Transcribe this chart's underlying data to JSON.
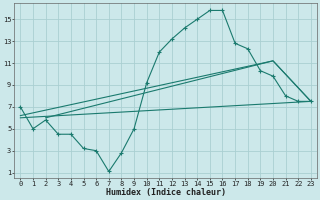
{
  "xlabel": "Humidex (Indice chaleur)",
  "bg_color": "#cce8ea",
  "grid_color": "#aacfd2",
  "line_color": "#1a7a6e",
  "xlim": [
    -0.5,
    23.5
  ],
  "ylim": [
    0.5,
    16.5
  ],
  "xticks": [
    0,
    1,
    2,
    3,
    4,
    5,
    6,
    7,
    8,
    9,
    10,
    11,
    12,
    13,
    14,
    15,
    16,
    17,
    18,
    19,
    20,
    21,
    22,
    23
  ],
  "yticks": [
    1,
    3,
    5,
    7,
    9,
    11,
    13,
    15
  ],
  "curve_x": [
    0,
    1,
    2,
    3,
    4,
    5,
    6,
    7,
    8,
    9,
    10,
    11,
    12,
    13,
    14,
    15,
    16,
    17,
    18,
    19,
    20,
    21,
    22,
    23
  ],
  "curve_y": [
    7.0,
    5.0,
    5.8,
    4.5,
    4.5,
    3.2,
    3.0,
    1.1,
    2.8,
    5.0,
    9.2,
    12.0,
    13.2,
    14.2,
    15.0,
    15.8,
    15.8,
    12.8,
    12.3,
    10.3,
    9.8,
    8.0,
    7.5,
    7.5
  ],
  "line1_x": [
    0,
    23
  ],
  "line1_y": [
    6.0,
    7.5
  ],
  "line2_x": [
    0,
    20,
    23
  ],
  "line2_y": [
    6.2,
    11.2,
    7.5
  ],
  "line3_x": [
    2,
    20,
    23
  ],
  "line3_y": [
    6.0,
    11.2,
    7.5
  ]
}
